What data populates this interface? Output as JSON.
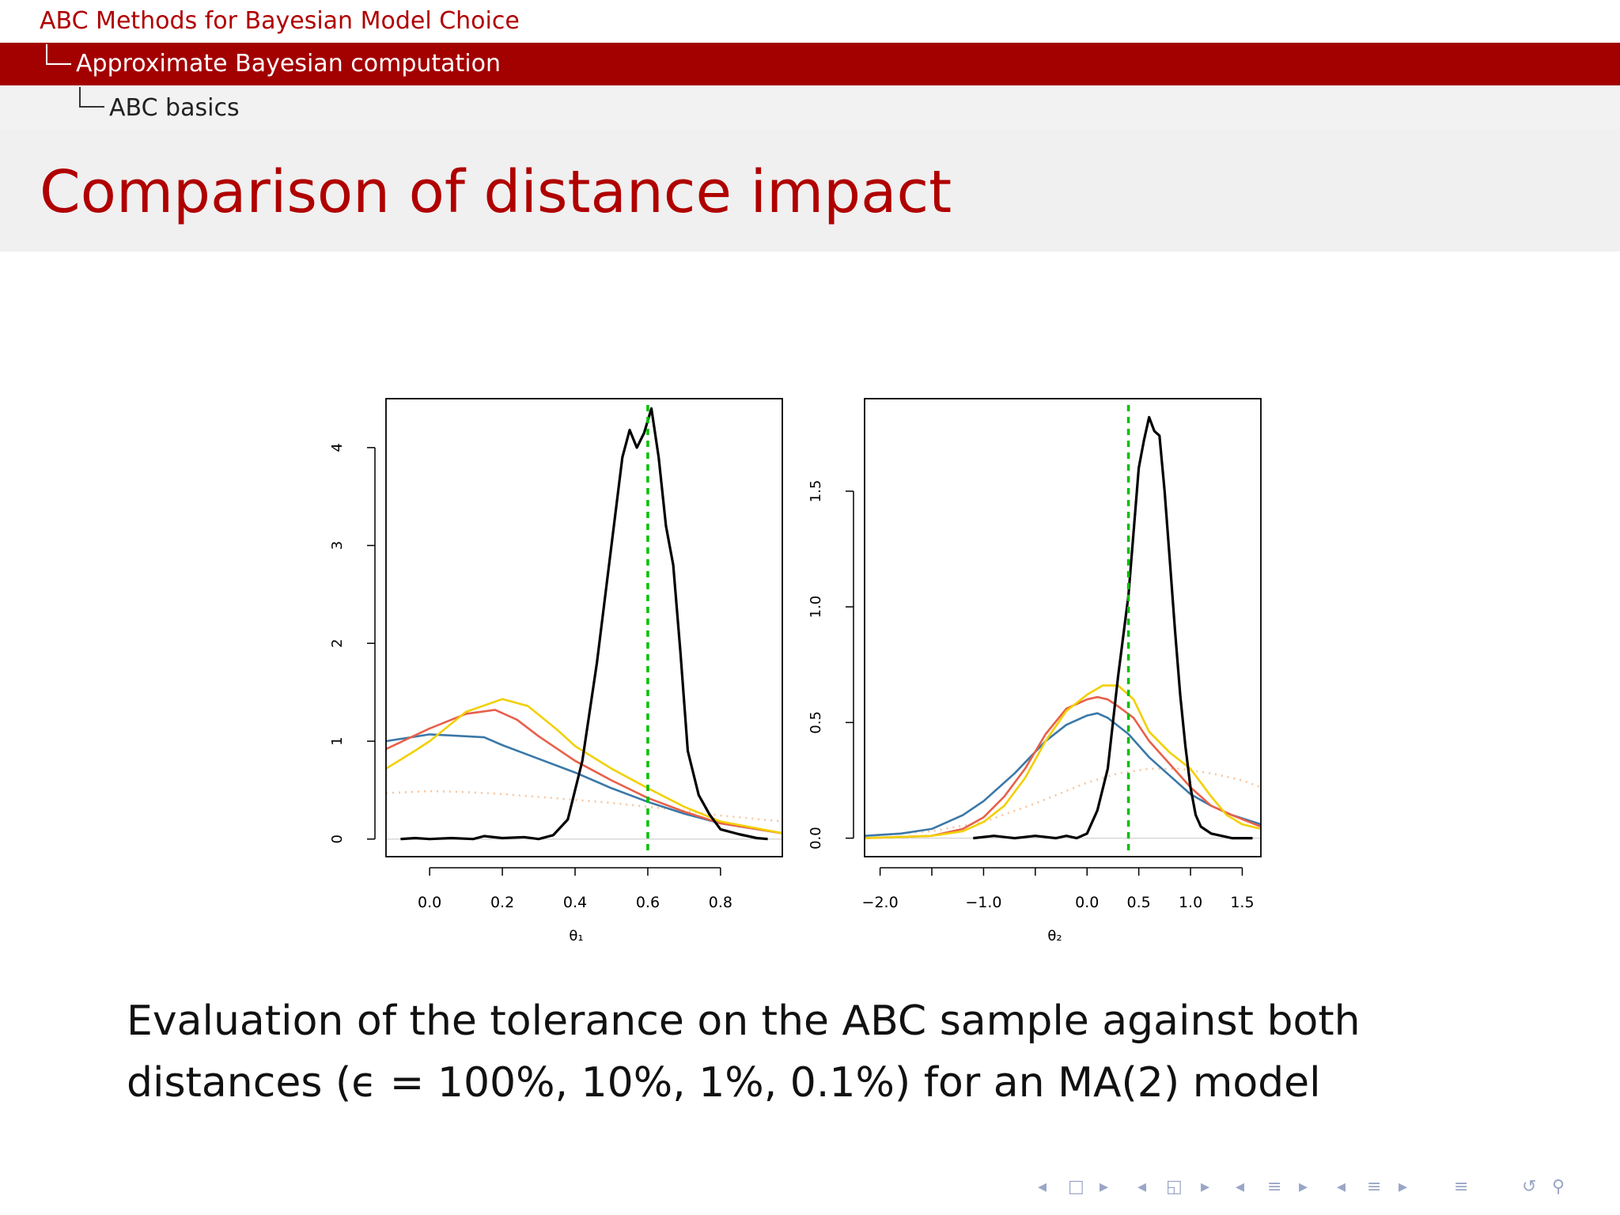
{
  "header": {
    "section": "ABC Methods for Bayesian Model Choice",
    "subsection": "Approximate Bayesian computation",
    "subsubsection": "ABC basics"
  },
  "title": "Comparison of distance impact",
  "caption": {
    "line1": "Evaluation of the tolerance on the ABC sample against both",
    "line2": "distances (ϵ = 100%, 10%, 1%, 0.1%) for an MA(2) model"
  },
  "nav": {
    "icons": [
      "nav-left-arrow-icon",
      "nav-frame-icon",
      "nav-right-arrow-icon",
      "nav-left-arrow-icon",
      "nav-subsection-icon",
      "nav-right-arrow-icon",
      "nav-left-arrow-icon",
      "nav-section-icon",
      "nav-right-arrow-icon",
      "nav-left-arrow-icon",
      "nav-document-icon",
      "nav-right-arrow-icon",
      "nav-outline-icon",
      "nav-back-icon",
      "nav-search-icon"
    ],
    "glyphs": [
      "◂",
      "□",
      "▸",
      "◂",
      "◱",
      "▸",
      "◂",
      "≡",
      "▸",
      "◂",
      "≡",
      "▸",
      "≡",
      "↺",
      "⚲"
    ]
  },
  "colors": {
    "eps100": "#f5c6a0",
    "eps10": "#3a78a8",
    "eps1": "#e8604a",
    "eps01": "#f2d000",
    "exact": "#000000",
    "truth": "#00c000",
    "accent": "#a30000"
  },
  "chart_data": [
    {
      "type": "line",
      "xlabel": "θ₁",
      "ylabel": "",
      "xlim": [
        -0.12,
        0.97
      ],
      "ylim": [
        -0.18,
        4.5
      ],
      "xticks": [
        0.0,
        0.2,
        0.4,
        0.6,
        0.8
      ],
      "xtick_labels": [
        "0.0",
        "0.2",
        "0.4",
        "0.6",
        "0.8"
      ],
      "yticks": [
        0,
        1,
        2,
        3,
        4
      ],
      "ytick_labels": [
        "0",
        "1",
        "2",
        "3",
        "4"
      ],
      "truth": 0.6,
      "grid": false,
      "series": [
        {
          "key": "eps100",
          "style": "dotted",
          "x": [
            -0.12,
            0.0,
            0.1,
            0.2,
            0.3,
            0.4,
            0.5,
            0.6,
            0.7,
            0.8,
            0.97
          ],
          "y": [
            0.47,
            0.49,
            0.48,
            0.46,
            0.43,
            0.4,
            0.37,
            0.33,
            0.29,
            0.24,
            0.18
          ]
        },
        {
          "key": "eps10",
          "style": "solid",
          "x": [
            -0.12,
            0.0,
            0.05,
            0.1,
            0.15,
            0.2,
            0.3,
            0.4,
            0.5,
            0.6,
            0.7,
            0.8,
            0.97
          ],
          "y": [
            1.0,
            1.07,
            1.06,
            1.05,
            1.04,
            0.96,
            0.82,
            0.68,
            0.52,
            0.38,
            0.26,
            0.16,
            0.06
          ]
        },
        {
          "key": "eps1",
          "style": "solid",
          "x": [
            -0.12,
            0.0,
            0.1,
            0.18,
            0.24,
            0.3,
            0.4,
            0.5,
            0.6,
            0.7,
            0.8,
            0.97
          ],
          "y": [
            0.92,
            1.13,
            1.28,
            1.32,
            1.22,
            1.05,
            0.8,
            0.6,
            0.42,
            0.28,
            0.16,
            0.06
          ]
        },
        {
          "key": "eps01",
          "style": "solid",
          "x": [
            -0.12,
            -0.05,
            0.0,
            0.1,
            0.2,
            0.27,
            0.35,
            0.4,
            0.5,
            0.6,
            0.7,
            0.8,
            0.97
          ],
          "y": [
            0.72,
            0.88,
            1.0,
            1.3,
            1.43,
            1.36,
            1.12,
            0.95,
            0.72,
            0.52,
            0.33,
            0.18,
            0.06
          ]
        },
        {
          "key": "exact",
          "style": "solid",
          "x": [
            -0.08,
            -0.04,
            0.0,
            0.06,
            0.12,
            0.15,
            0.2,
            0.26,
            0.3,
            0.34,
            0.38,
            0.42,
            0.46,
            0.5,
            0.53,
            0.55,
            0.57,
            0.59,
            0.61,
            0.63,
            0.65,
            0.67,
            0.69,
            0.71,
            0.74,
            0.77,
            0.8,
            0.85,
            0.9,
            0.93
          ],
          "y": [
            0.0,
            0.01,
            0.0,
            0.01,
            0.0,
            0.03,
            0.01,
            0.02,
            0.0,
            0.04,
            0.2,
            0.8,
            1.8,
            3.0,
            3.9,
            4.18,
            4.0,
            4.15,
            4.4,
            3.9,
            3.2,
            2.8,
            1.9,
            0.9,
            0.45,
            0.25,
            0.1,
            0.05,
            0.01,
            0.0
          ]
        }
      ]
    },
    {
      "type": "line",
      "xlabel": "θ₂",
      "ylabel": "",
      "xlim": [
        -2.15,
        1.68
      ],
      "ylim": [
        -0.08,
        1.9
      ],
      "xticks": [
        -2.0,
        -1.5,
        -1.0,
        -0.5,
        0.0,
        0.5,
        1.0,
        1.5
      ],
      "xtick_labels": [
        "−2.0",
        "",
        "−1.0",
        "",
        "0.0",
        "0.5",
        "1.0",
        "1.5"
      ],
      "yticks": [
        0.0,
        0.5,
        1.0,
        1.5
      ],
      "ytick_labels": [
        "0.0",
        "0.5",
        "1.0",
        "1.5"
      ],
      "truth": 0.4,
      "grid": false,
      "series": [
        {
          "key": "eps100",
          "style": "dotted",
          "x": [
            -2.15,
            -1.5,
            -1.0,
            -0.5,
            0.0,
            0.3,
            0.6,
            0.9,
            1.2,
            1.5,
            1.68
          ],
          "y": [
            0.01,
            0.03,
            0.07,
            0.15,
            0.24,
            0.28,
            0.3,
            0.3,
            0.28,
            0.25,
            0.22
          ]
        },
        {
          "key": "eps10",
          "style": "solid",
          "x": [
            -2.15,
            -1.8,
            -1.5,
            -1.2,
            -1.0,
            -0.7,
            -0.4,
            -0.2,
            0.0,
            0.1,
            0.2,
            0.4,
            0.6,
            0.8,
            1.0,
            1.2,
            1.4,
            1.68
          ],
          "y": [
            0.01,
            0.02,
            0.04,
            0.1,
            0.16,
            0.28,
            0.42,
            0.49,
            0.53,
            0.54,
            0.52,
            0.45,
            0.35,
            0.27,
            0.19,
            0.14,
            0.1,
            0.06
          ]
        },
        {
          "key": "eps1",
          "style": "solid",
          "x": [
            -2.15,
            -1.5,
            -1.2,
            -1.0,
            -0.8,
            -0.6,
            -0.4,
            -0.2,
            0.0,
            0.1,
            0.2,
            0.3,
            0.45,
            0.6,
            0.8,
            1.0,
            1.2,
            1.4,
            1.68
          ],
          "y": [
            0.0,
            0.01,
            0.04,
            0.09,
            0.18,
            0.3,
            0.45,
            0.56,
            0.6,
            0.61,
            0.6,
            0.57,
            0.52,
            0.42,
            0.32,
            0.22,
            0.14,
            0.1,
            0.05
          ]
        },
        {
          "key": "eps01",
          "style": "solid",
          "x": [
            -2.15,
            -1.5,
            -1.2,
            -1.0,
            -0.8,
            -0.6,
            -0.4,
            -0.2,
            0.0,
            0.15,
            0.3,
            0.45,
            0.6,
            0.8,
            1.0,
            1.2,
            1.35,
            1.5,
            1.68
          ],
          "y": [
            0.0,
            0.01,
            0.03,
            0.07,
            0.14,
            0.26,
            0.42,
            0.55,
            0.62,
            0.66,
            0.66,
            0.6,
            0.46,
            0.37,
            0.3,
            0.18,
            0.1,
            0.06,
            0.04
          ]
        },
        {
          "key": "exact",
          "style": "solid",
          "x": [
            -1.1,
            -0.9,
            -0.7,
            -0.5,
            -0.3,
            -0.2,
            -0.1,
            0.0,
            0.1,
            0.2,
            0.3,
            0.4,
            0.5,
            0.55,
            0.6,
            0.65,
            0.7,
            0.75,
            0.8,
            0.85,
            0.9,
            0.95,
            1.0,
            1.05,
            1.1,
            1.2,
            1.3,
            1.4,
            1.6
          ],
          "y": [
            0.0,
            0.01,
            0.0,
            0.01,
            0.0,
            0.01,
            0.0,
            0.02,
            0.12,
            0.3,
            0.7,
            1.05,
            1.6,
            1.72,
            1.82,
            1.76,
            1.74,
            1.5,
            1.2,
            0.9,
            0.62,
            0.4,
            0.22,
            0.1,
            0.05,
            0.02,
            0.01,
            0.0,
            0.0
          ]
        }
      ]
    }
  ]
}
